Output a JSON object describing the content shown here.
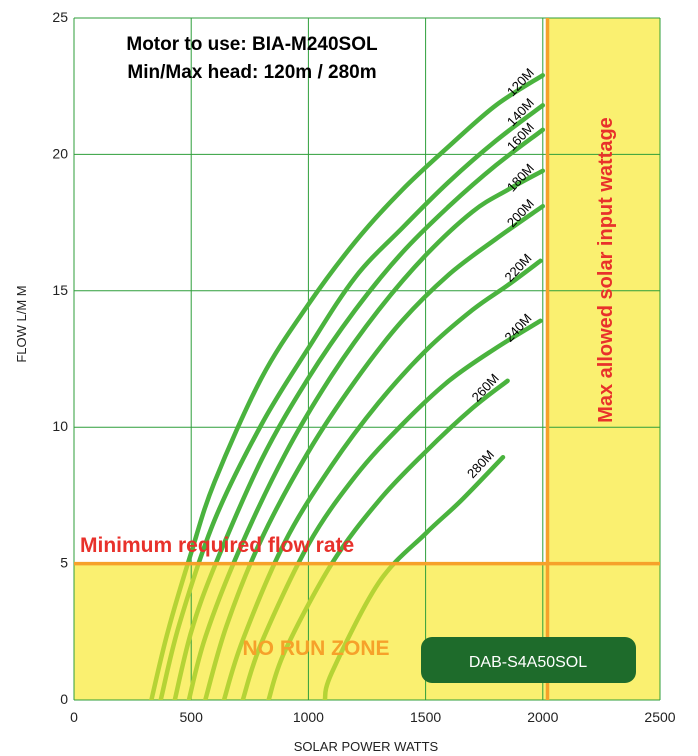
{
  "chart_data": {
    "type": "line",
    "title_lines": [
      "Motor to use: BIA-M240SOL",
      "Min/Max head: 120m / 280m"
    ],
    "xlabel": "SOLAR POWER WATTS",
    "ylabel": "FLOW L/M M",
    "xlim": [
      0,
      2500
    ],
    "ylim": [
      0,
      25
    ],
    "xticks": [
      0,
      500,
      1000,
      1500,
      2000,
      2500
    ],
    "yticks": [
      0,
      5,
      10,
      15,
      20,
      25
    ],
    "grid": true,
    "min_flow": 5,
    "max_watts": 2020,
    "min_flow_label": "Minimum required flow rate",
    "max_watts_label": "Max allowed solar input wattage",
    "no_run_label": "NO RUN ZONE",
    "model_badge": "DAB-S4A50SOL",
    "series": [
      {
        "name": "120M",
        "x": [
          330,
          400,
          500,
          600,
          800,
          1000,
          1200,
          1400,
          1600,
          1800,
          2000
        ],
        "y": [
          0,
          2.5,
          5.4,
          8.0,
          11.8,
          14.5,
          16.8,
          18.7,
          20.3,
          21.8,
          22.9
        ]
      },
      {
        "name": "140M",
        "x": [
          370,
          450,
          600,
          800,
          1000,
          1200,
          1400,
          1600,
          1800,
          2000
        ],
        "y": [
          0,
          2.8,
          6.6,
          10.1,
          12.9,
          15.5,
          17.3,
          19.0,
          20.5,
          21.8
        ]
      },
      {
        "name": "160M",
        "x": [
          430,
          500,
          600,
          800,
          1000,
          1200,
          1400,
          1600,
          1800,
          2000
        ],
        "y": [
          0,
          2.5,
          4.9,
          8.8,
          11.8,
          14.3,
          16.4,
          18.1,
          19.6,
          20.9
        ]
      },
      {
        "name": "180M",
        "x": [
          490,
          560,
          700,
          900,
          1100,
          1300,
          1500,
          1700,
          1850,
          2000
        ],
        "y": [
          0,
          2.3,
          5.4,
          9.0,
          11.9,
          14.3,
          16.3,
          17.9,
          18.7,
          19.4
        ]
      },
      {
        "name": "200M",
        "x": [
          560,
          650,
          800,
          1000,
          1200,
          1400,
          1600,
          1800,
          2000
        ],
        "y": [
          0,
          2.7,
          5.9,
          9.1,
          11.7,
          13.9,
          15.6,
          16.9,
          18.1
        ]
      },
      {
        "name": "220M",
        "x": [
          640,
          720,
          900,
          1100,
          1300,
          1500,
          1700,
          1850,
          1990
        ],
        "y": [
          0,
          2.2,
          5.8,
          8.6,
          10.9,
          12.8,
          14.3,
          15.2,
          16.1
        ]
      },
      {
        "name": "240M",
        "x": [
          720,
          800,
          1000,
          1200,
          1400,
          1600,
          1800,
          1990
        ],
        "y": [
          0,
          2.1,
          5.7,
          8.2,
          10.1,
          11.7,
          12.9,
          13.9
        ]
      },
      {
        "name": "260M",
        "x": [
          830,
          900,
          1100,
          1300,
          1500,
          1700,
          1850
        ],
        "y": [
          0,
          1.8,
          5.0,
          7.3,
          9.1,
          10.7,
          11.7
        ]
      },
      {
        "name": "280M",
        "x": [
          1070,
          1100,
          1300,
          1500,
          1650,
          1830
        ],
        "y": [
          0,
          1.0,
          4.3,
          6.1,
          7.3,
          8.9
        ]
      }
    ],
    "colors": {
      "curve": "#4ab33e",
      "curve_below_min": "#b5d335",
      "zone_fill": "#faf070",
      "threshold_line": "#f6a12a",
      "warning_text": "#e8312b",
      "no_run_text": "#f6a12a",
      "grid": "#2e9e3a",
      "badge_fill": "#1e6b2b",
      "badge_text": "#ffffff"
    }
  }
}
